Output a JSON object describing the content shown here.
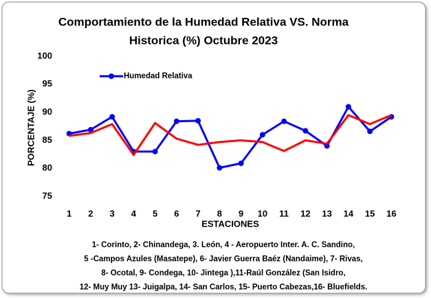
{
  "chart_data": {
    "type": "line",
    "title": [
      "Comportamiento de la Humedad Relativa VS. Norma",
      "Historica (%)  Octubre 2023"
    ],
    "y_label": "PORCENTAJE (%)",
    "x_label": "ESTACIONES",
    "categories": [
      "1",
      "2",
      "3",
      "4",
      "5",
      "6",
      "7",
      "8",
      "9",
      "10",
      "11",
      "12",
      "13",
      "14",
      "15",
      "16"
    ],
    "series": [
      {
        "name": "Humedad Relativa",
        "color": "#0000ff",
        "markers": true,
        "values": [
          86.2,
          86.9,
          89.2,
          83.0,
          83.0,
          88.4,
          88.5,
          80.1,
          80.9,
          86.0,
          88.4,
          86.7,
          84.0,
          91.0,
          86.6,
          89.2
        ]
      },
      {
        "color": "#ff0000",
        "markers": false,
        "values": [
          85.8,
          86.3,
          87.9,
          82.4,
          88.1,
          85.3,
          84.2,
          84.7,
          85.0,
          84.7,
          83.1,
          85.0,
          84.4,
          89.5,
          87.9,
          89.5
        ]
      }
    ],
    "ylim": [
      75,
      100
    ],
    "yticks": [
      75,
      80,
      85,
      90,
      95,
      100
    ],
    "grid": false,
    "legend": "top-left",
    "notes": [
      "1- Corinto,  2- Chinandega,  3. León, 4 - Aeropuerto Inter. A. C. Sandino,",
      "5 -Campos Azules (Masatepe), 6- Javier Guerra Baéz (Nandaime), 7- Rivas,",
      "8- Ocotal, 9- Condega, 10- Jintega ),11-Raúl González (San Isidro,",
      "12- Muy Muy 13- Juigalpa, 14- San Carlos, 15- Puerto Cabezas,16- Bluefields."
    ]
  }
}
